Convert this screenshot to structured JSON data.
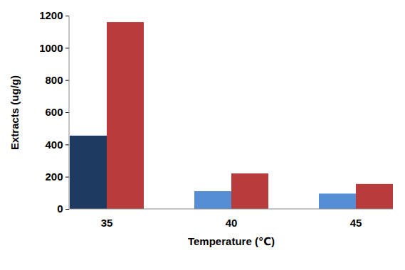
{
  "chart_data": {
    "type": "bar",
    "x_label": "Temperature (℃)",
    "y_label": "Extracts (ug/g)",
    "categories": [
      "35",
      "40",
      "45"
    ],
    "series": [
      {
        "colors": [
          "#1f3a60",
          "#558ed5",
          "#558ed5"
        ],
        "values": [
          455,
          110,
          95
        ]
      },
      {
        "color": "#b93c3c",
        "values": [
          1160,
          220,
          155
        ]
      }
    ],
    "ylim": [
      0,
      1200
    ],
    "yticks": [
      0,
      200,
      400,
      600,
      800,
      1000,
      1200
    ],
    "grid": false
  }
}
